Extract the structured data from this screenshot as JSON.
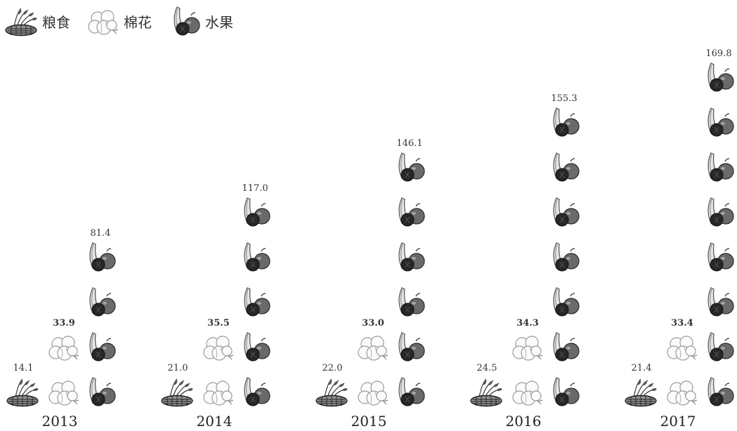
{
  "chart_data": {
    "type": "pictograph",
    "legend": [
      {
        "key": "grain",
        "label": "粮食",
        "icon": "grain-basket-icon"
      },
      {
        "key": "cotton",
        "label": "棉花",
        "icon": "cotton-icon"
      },
      {
        "key": "fruit",
        "label": "水果",
        "icon": "fruit-icon"
      }
    ],
    "categories": [
      "2013",
      "2014",
      "2015",
      "2016",
      "2017"
    ],
    "series": [
      {
        "key": "grain",
        "values": [
          14.1,
          21.0,
          22.0,
          24.5,
          21.4
        ],
        "labels": [
          "14.1",
          "21.0",
          "22.0",
          "24.5",
          "21.4"
        ]
      },
      {
        "key": "cotton",
        "values": [
          33.9,
          35.5,
          33.0,
          34.3,
          33.4
        ],
        "labels": [
          "33.9",
          "35.5",
          "33.0",
          "34.3",
          "33.4"
        ]
      },
      {
        "key": "fruit",
        "values": [
          81.4,
          117.0,
          146.1,
          155.3,
          169.8
        ],
        "labels": [
          "81.4",
          "117.0",
          "146.1",
          "155.3",
          "169.8"
        ]
      }
    ],
    "icon_counts": {
      "grain": [
        1,
        1,
        1,
        1,
        1
      ],
      "cotton": [
        2,
        2,
        2,
        2,
        2
      ],
      "fruit": [
        4,
        5,
        6,
        7,
        8
      ]
    }
  }
}
